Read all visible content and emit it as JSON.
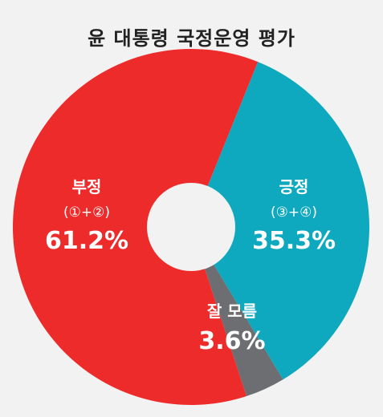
{
  "title": "윤 대통령 국정운영 평가",
  "chart_data": {
    "type": "pie",
    "title": "윤 대통령 국정운영 평가",
    "slices": [
      {
        "name": "긍정",
        "sub": "(③+④)",
        "value": 35.3,
        "label": "35.3%",
        "color": "#0fa9bf"
      },
      {
        "name": "잘 모름",
        "sub": "",
        "value": 3.6,
        "label": "3.6%",
        "color": "#6d6e71"
      },
      {
        "name": "부정",
        "sub": "(①+②)",
        "value": 61.2,
        "label": "61.2%",
        "color": "#ee2b2b"
      }
    ]
  }
}
